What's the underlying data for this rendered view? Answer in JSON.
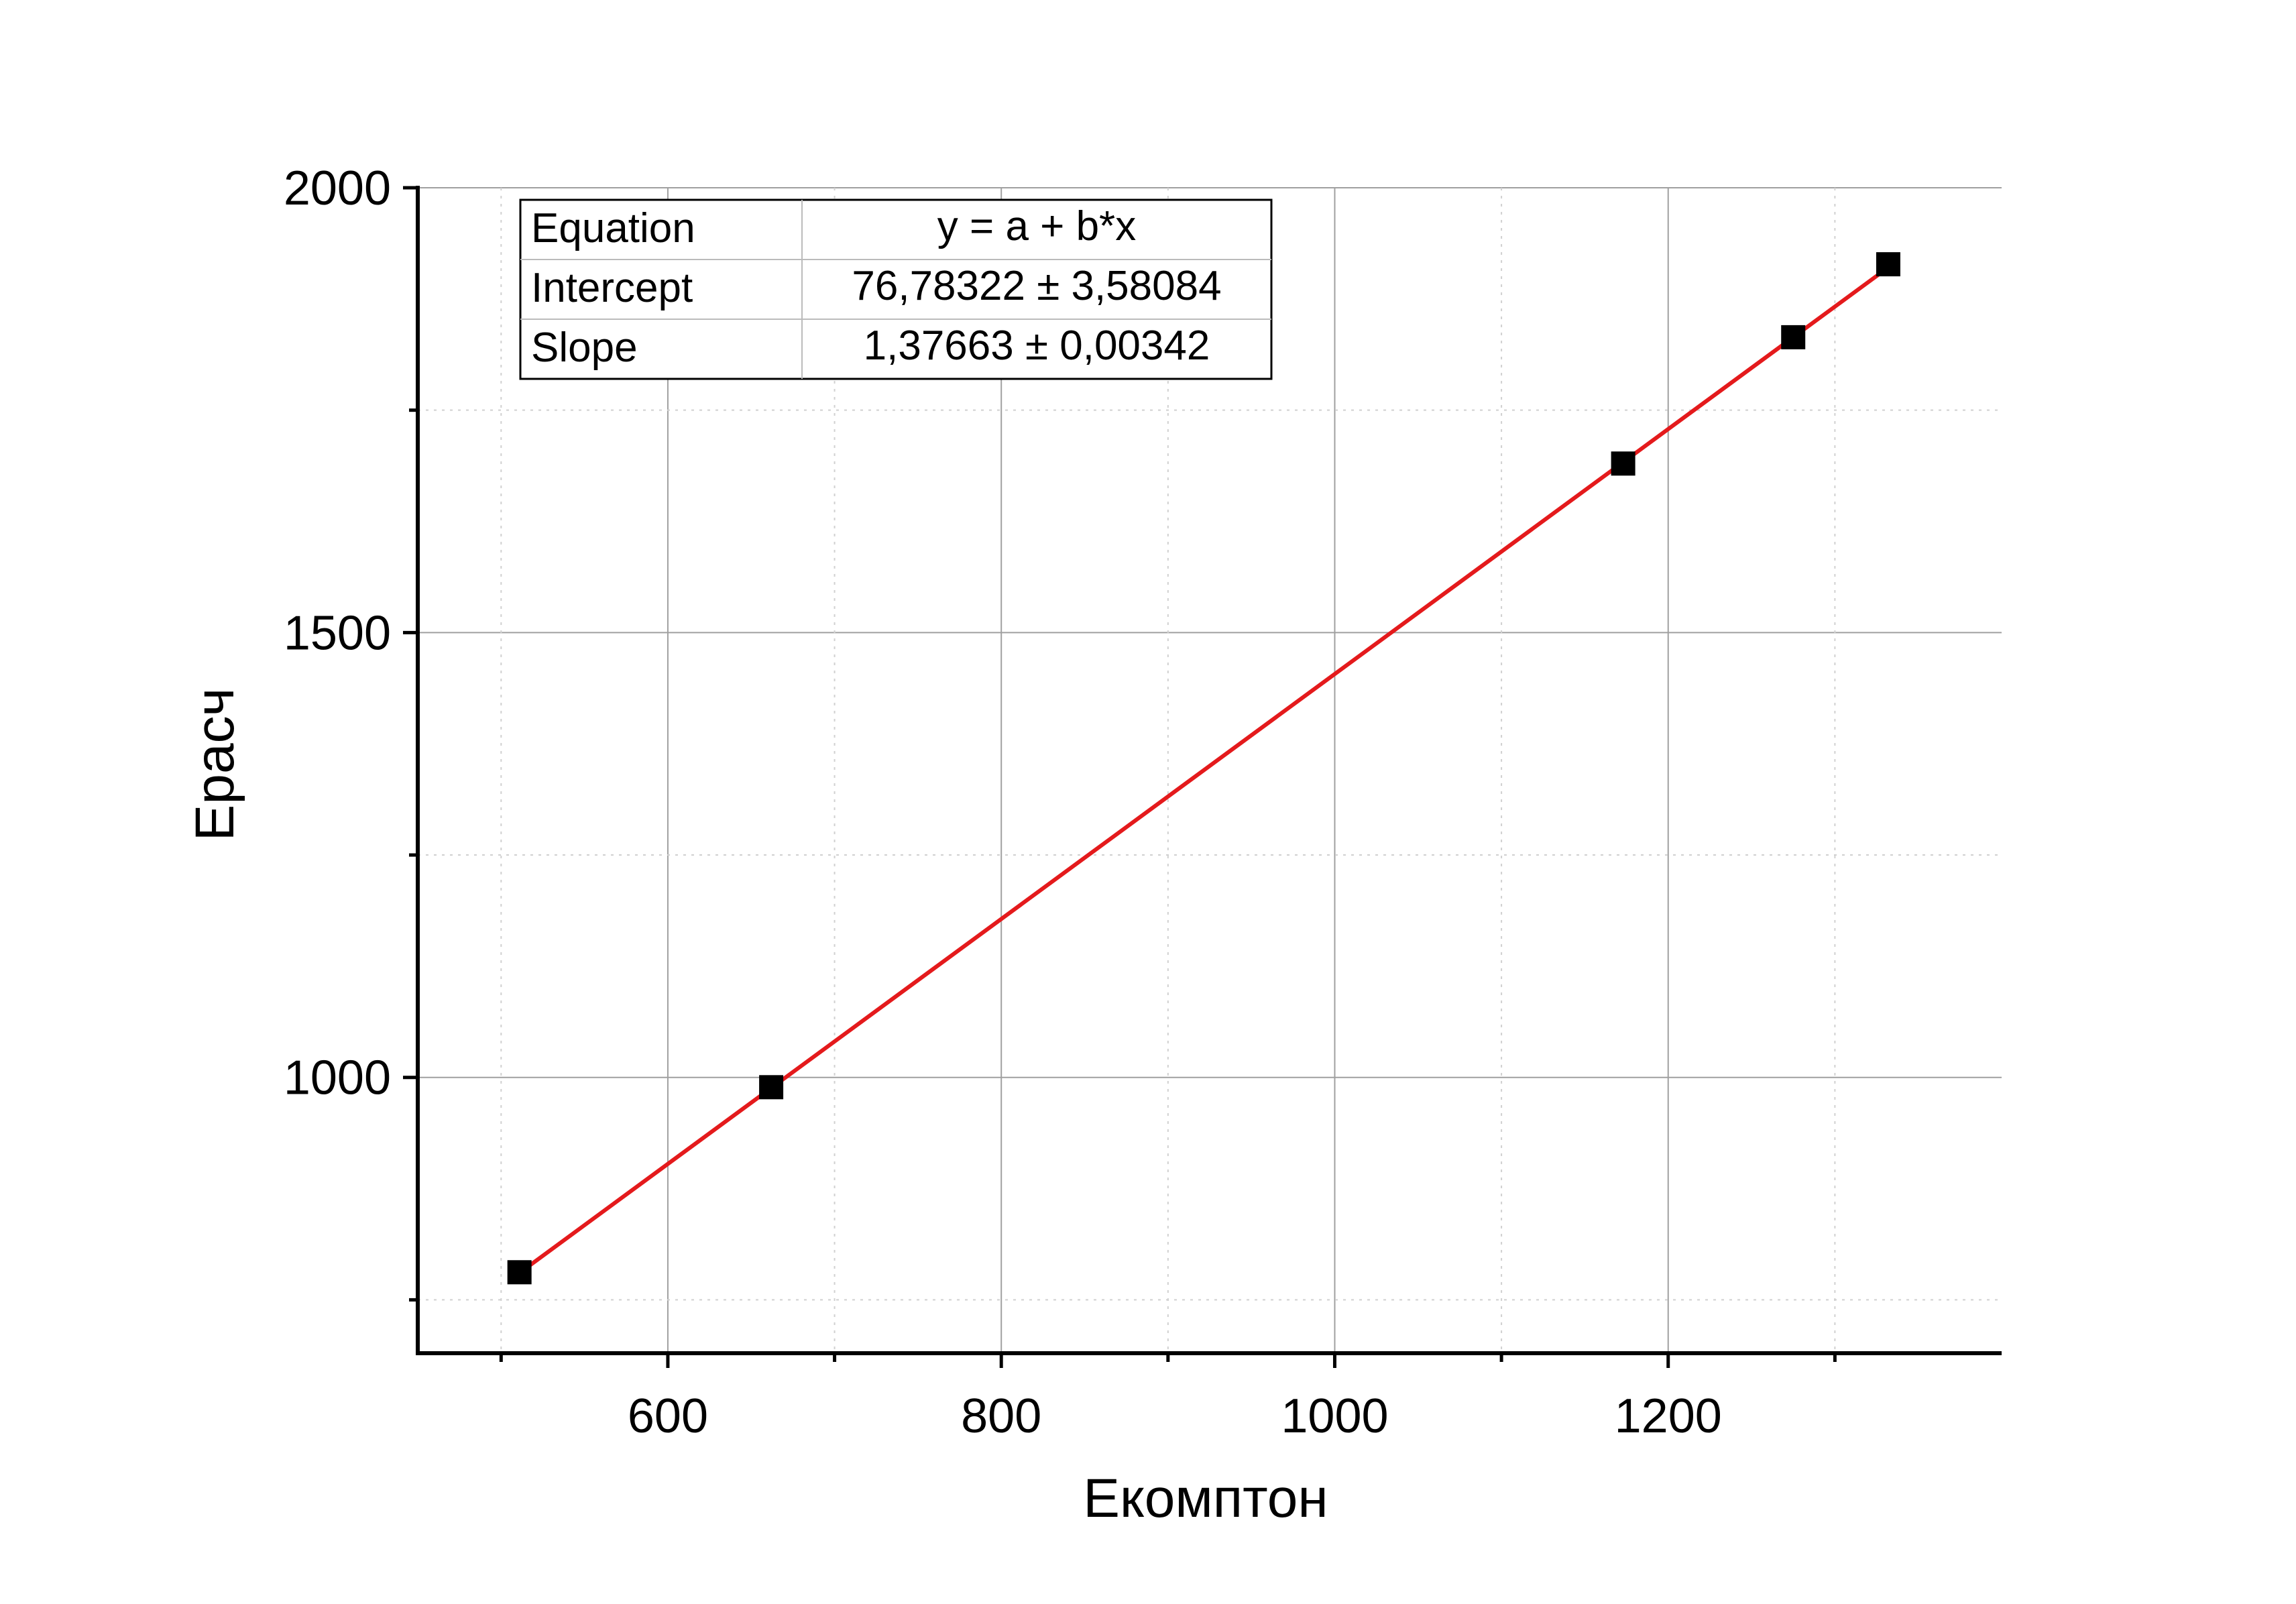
{
  "chart_data": {
    "type": "scatter",
    "xlabel": "Екомптон",
    "ylabel": "Ерасч",
    "xlim": [
      450,
      1400
    ],
    "ylim": [
      690,
      2000
    ],
    "x_ticks": [
      600,
      800,
      1000,
      1200
    ],
    "x_minor_ticks": [
      500,
      700,
      900,
      1100,
      1300
    ],
    "y_ticks": [
      1000,
      1500,
      2000
    ],
    "y_minor_ticks": [
      750,
      1250,
      1750
    ],
    "grid": true,
    "colors": {
      "points": "#000000",
      "fit_line": "#e41a1c",
      "grid": "#a0a0a0"
    },
    "series": [
      {
        "marker": "square",
        "x": [
          511,
          662,
          1173,
          1275,
          1332
        ],
        "y": [
          781,
          989,
          1690,
          1832,
          1914
        ]
      }
    ],
    "fit": {
      "type": "linear",
      "intercept": 76.78322,
      "slope": 1.37663,
      "x_range": [
        511,
        1332
      ]
    },
    "fit_table": {
      "rows": [
        {
          "label": "Equation",
          "value": "y = a + b*x"
        },
        {
          "label": "Intercept",
          "value": "76,78322 ± 3,58084"
        },
        {
          "label": "Slope",
          "value": "1,37663 ± 0,00342"
        }
      ]
    }
  }
}
